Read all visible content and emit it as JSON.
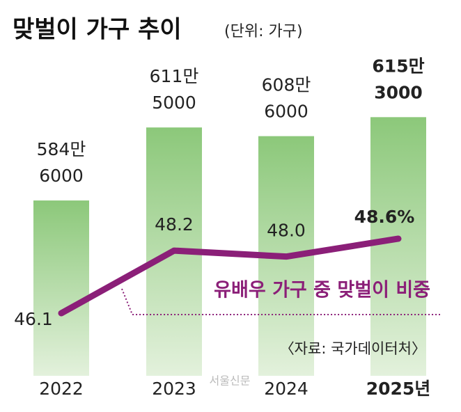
{
  "chart_data": {
    "type": "bar-line",
    "title": "맞벌이 가구 추이",
    "subtitle": "(단위: 가구)",
    "categories": [
      "2022",
      "2023",
      "2024",
      "2025년"
    ],
    "series": [
      {
        "name": "맞벌이 가구",
        "color": "#8cc87a",
        "values": [
          5846000,
          6115000,
          6083000,
          6153000
        ],
        "value_labels": [
          [
            "584만",
            "6000"
          ],
          [
            "611만",
            "5000"
          ],
          [
            "608만",
            "6000"
          ],
          [
            "615만",
            "3000"
          ]
        ]
      },
      {
        "name": "유배우 가구 중 맞벌이 비중",
        "color": "#8b1f78",
        "axis": "y2",
        "values": [
          46.1,
          48.2,
          48.0,
          48.6
        ],
        "value_labels": [
          "46.1",
          "48.2",
          "48.0",
          "48.6%"
        ]
      }
    ],
    "ylim": [
      5200000,
      6200000
    ],
    "y2lim": [
      44,
      50
    ],
    "source": "〈자료: 국가데이터처〉",
    "watermark": "서울신문"
  }
}
